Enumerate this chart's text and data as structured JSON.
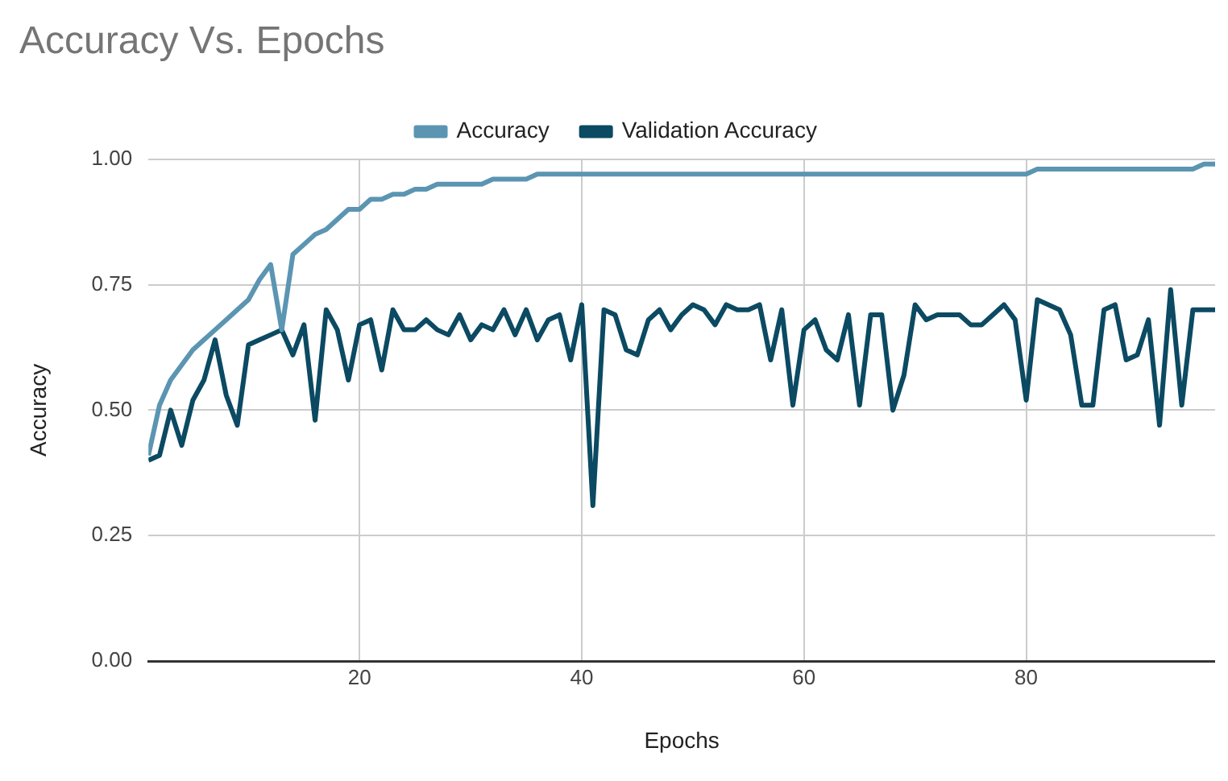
{
  "chart_data": {
    "type": "line",
    "title": "Accuracy Vs. Epochs",
    "xlabel": "Epochs",
    "ylabel": "Accuracy",
    "x": [
      1,
      2,
      3,
      4,
      5,
      6,
      7,
      8,
      9,
      10,
      11,
      12,
      13,
      14,
      15,
      16,
      17,
      18,
      19,
      20,
      21,
      22,
      23,
      24,
      25,
      26,
      27,
      28,
      29,
      30,
      31,
      32,
      33,
      34,
      35,
      36,
      37,
      38,
      39,
      40,
      41,
      42,
      43,
      44,
      45,
      46,
      47,
      48,
      49,
      50,
      51,
      52,
      53,
      54,
      55,
      56,
      57,
      58,
      59,
      60,
      61,
      62,
      63,
      64,
      65,
      66,
      67,
      68,
      69,
      70,
      71,
      72,
      73,
      74,
      75,
      76,
      77,
      78,
      79,
      80,
      81,
      82,
      83,
      84,
      85,
      86,
      87,
      88,
      89,
      90,
      91,
      92,
      93,
      94,
      95,
      96,
      97
    ],
    "series": [
      {
        "name": "Accuracy",
        "color": "#5b95b2",
        "values": [
          0.41,
          0.51,
          0.56,
          0.59,
          0.62,
          0.64,
          0.66,
          0.68,
          0.7,
          0.72,
          0.76,
          0.79,
          0.66,
          0.81,
          0.83,
          0.85,
          0.86,
          0.88,
          0.9,
          0.9,
          0.92,
          0.92,
          0.93,
          0.93,
          0.94,
          0.94,
          0.95,
          0.95,
          0.95,
          0.95,
          0.95,
          0.96,
          0.96,
          0.96,
          0.96,
          0.97,
          0.97,
          0.97,
          0.97,
          0.97,
          0.97,
          0.97,
          0.97,
          0.97,
          0.97,
          0.97,
          0.97,
          0.97,
          0.97,
          0.97,
          0.97,
          0.97,
          0.97,
          0.97,
          0.97,
          0.97,
          0.97,
          0.97,
          0.97,
          0.97,
          0.97,
          0.97,
          0.97,
          0.97,
          0.97,
          0.97,
          0.97,
          0.97,
          0.97,
          0.97,
          0.97,
          0.97,
          0.97,
          0.97,
          0.97,
          0.97,
          0.97,
          0.97,
          0.97,
          0.97,
          0.98,
          0.98,
          0.98,
          0.98,
          0.98,
          0.98,
          0.98,
          0.98,
          0.98,
          0.98,
          0.98,
          0.98,
          0.98,
          0.98,
          0.98,
          0.99,
          0.99
        ]
      },
      {
        "name": "Validation Accuracy",
        "color": "#0b4a62",
        "values": [
          0.4,
          0.41,
          0.5,
          0.43,
          0.52,
          0.56,
          0.64,
          0.53,
          0.47,
          0.63,
          0.64,
          0.65,
          0.66,
          0.61,
          0.67,
          0.48,
          0.7,
          0.66,
          0.56,
          0.67,
          0.68,
          0.58,
          0.7,
          0.66,
          0.66,
          0.68,
          0.66,
          0.65,
          0.69,
          0.64,
          0.67,
          0.66,
          0.7,
          0.65,
          0.7,
          0.64,
          0.68,
          0.69,
          0.6,
          0.71,
          0.31,
          0.7,
          0.69,
          0.62,
          0.61,
          0.68,
          0.7,
          0.66,
          0.69,
          0.71,
          0.7,
          0.67,
          0.71,
          0.7,
          0.7,
          0.71,
          0.6,
          0.7,
          0.51,
          0.66,
          0.68,
          0.62,
          0.6,
          0.69,
          0.51,
          0.69,
          0.69,
          0.5,
          0.57,
          0.71,
          0.68,
          0.69,
          0.69,
          0.69,
          0.67,
          0.67,
          0.69,
          0.71,
          0.68,
          0.52,
          0.72,
          0.71,
          0.7,
          0.65,
          0.51,
          0.51,
          0.7,
          0.71,
          0.6,
          0.61,
          0.68,
          0.47,
          0.74,
          0.51,
          0.7,
          0.7,
          0.7
        ]
      }
    ],
    "xlim": [
      1,
      97
    ],
    "xticks": [
      20,
      40,
      60,
      80
    ],
    "ylim": [
      0,
      1
    ],
    "yticks": [
      {
        "value": 0,
        "label": "0.00"
      },
      {
        "value": 0.25,
        "label": "0.25"
      },
      {
        "value": 0.5,
        "label": "0.50"
      },
      {
        "value": 0.75,
        "label": "0.75"
      },
      {
        "value": 1,
        "label": "1.00"
      }
    ],
    "grid": true,
    "legend": "top",
    "marker": "none",
    "line_style": "solid"
  }
}
